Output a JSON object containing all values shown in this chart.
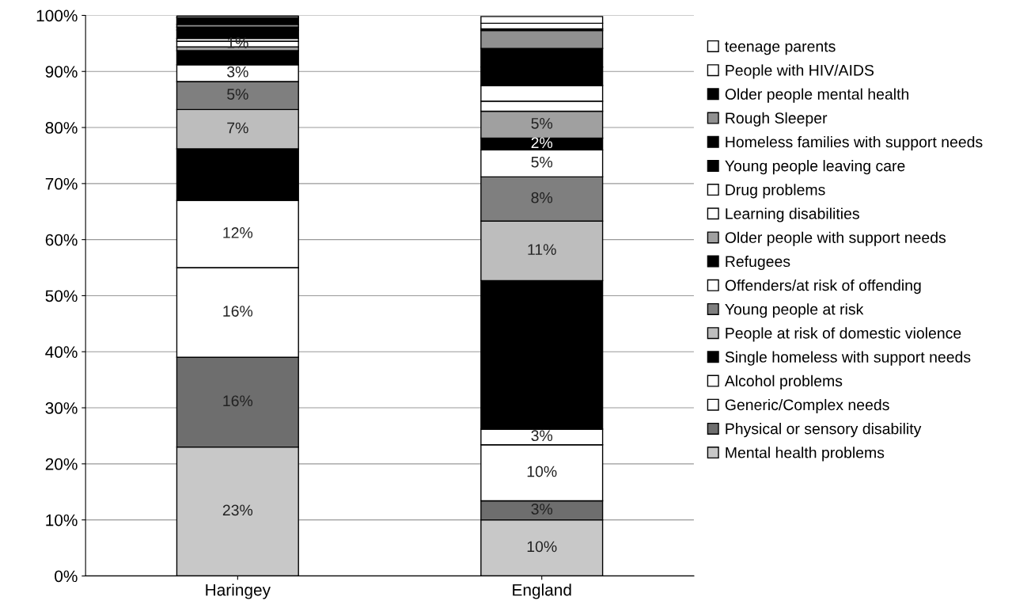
{
  "chart_data": {
    "type": "bar",
    "stacked": true,
    "categories": [
      "Haringey",
      "England"
    ],
    "ylim": [
      0,
      100
    ],
    "yticks": [
      {
        "value": 0,
        "label": "0%"
      },
      {
        "value": 10,
        "label": "10%"
      },
      {
        "value": 20,
        "label": "20%"
      },
      {
        "value": 30,
        "label": "30%"
      },
      {
        "value": 40,
        "label": "40%"
      },
      {
        "value": 50,
        "label": "50%"
      },
      {
        "value": 60,
        "label": "60%"
      },
      {
        "value": 70,
        "label": "70%"
      },
      {
        "value": 80,
        "label": "80%"
      },
      {
        "value": 90,
        "label": "90%"
      },
      {
        "value": 100,
        "label": "100%"
      }
    ],
    "grid": "y",
    "legend": "right",
    "series": [
      {
        "name": "Mental health problems",
        "color": "#c8c8c8",
        "values": [
          23,
          10
        ],
        "value_labels": [
          "23%",
          "10%"
        ]
      },
      {
        "name": "Physical or sensory disability",
        "color": "#6e6e6e",
        "values": [
          16,
          3.4
        ],
        "value_labels": [
          "16%",
          "3%"
        ]
      },
      {
        "name": "Generic/Complex needs",
        "color": "#ffffff",
        "values": [
          16,
          10
        ],
        "value_labels": [
          "16%",
          "10%"
        ]
      },
      {
        "name": "Alcohol problems",
        "color": "#ffffff",
        "values": [
          12,
          2.8
        ],
        "value_labels": [
          "12%",
          "3%"
        ]
      },
      {
        "name": "Single homeless with support needs",
        "color": "#000000",
        "values": [
          9.2,
          26.5
        ],
        "value_labels": [
          null,
          null
        ]
      },
      {
        "name": "People at risk of domestic violence",
        "color": "#bdbdbd",
        "values": [
          7,
          10.6
        ],
        "value_labels": [
          "7%",
          "11%"
        ]
      },
      {
        "name": "Young people at risk",
        "color": "#7f7f7f",
        "values": [
          5,
          7.9
        ],
        "value_labels": [
          "5%",
          "8%"
        ]
      },
      {
        "name": "Offenders/at risk of offending",
        "color": "#ffffff",
        "values": [
          3,
          4.8
        ],
        "value_labels": [
          "3%",
          "5%"
        ]
      },
      {
        "name": "Refugees",
        "color": "#000000",
        "values": [
          2.5,
          2.1
        ],
        "value_labels": [
          null,
          "2%"
        ]
      },
      {
        "name": "Older people with support needs",
        "color": "#a0a0a0",
        "values": [
          0.7,
          4.8
        ],
        "value_labels": [
          null,
          "5%"
        ]
      },
      {
        "name": "Learning disabilities",
        "color": "#ffffff",
        "values": [
          1,
          1.8
        ],
        "value_labels": [
          "1%",
          null
        ]
      },
      {
        "name": "Drug problems",
        "color": "#ffffff",
        "values": [
          0.5,
          2.8
        ],
        "value_labels": [
          null,
          null
        ]
      },
      {
        "name": "Young people leaving care",
        "color": "#000000",
        "values": [
          1.5,
          3.3
        ],
        "value_labels": [
          null,
          null
        ]
      },
      {
        "name": "Homeless families with support needs",
        "color": "#000000",
        "values": [
          0.5,
          3.3
        ],
        "value_labels": [
          null,
          null
        ]
      },
      {
        "name": "Rough Sleeper",
        "color": "#909090",
        "values": [
          0.5,
          3.2
        ],
        "value_labels": [
          null,
          null
        ]
      },
      {
        "name": "Older people mental health",
        "color": "#000000",
        "values": [
          1.2,
          0.3
        ],
        "value_labels": [
          null,
          null
        ]
      },
      {
        "name": "People with HIV/AIDS",
        "color": "#ffffff",
        "values": [
          0.3,
          1
        ],
        "value_labels": [
          null,
          null
        ]
      },
      {
        "name": "teenage parents",
        "color": "#ffffff",
        "values": [
          null,
          1.2
        ],
        "value_labels": [
          null,
          null
        ]
      }
    ]
  }
}
